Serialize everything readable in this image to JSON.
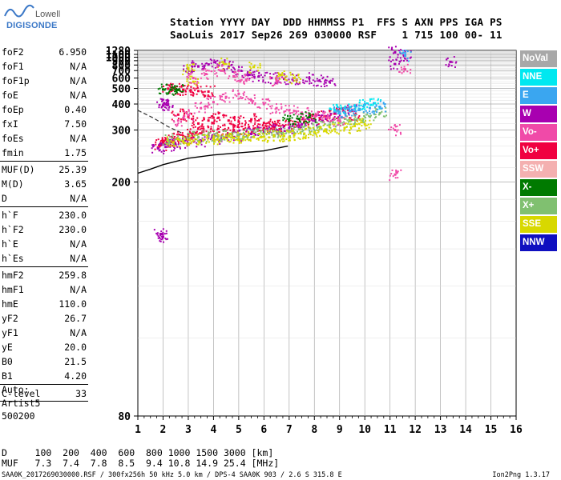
{
  "brand": {
    "line1": "Lowell",
    "line2": "DIGISONDE"
  },
  "header": {
    "line1": "Station YYYY DAY  DDD HHMMSS P1  FFS S AXN PPS IGA PS",
    "line2": "SaoLuis 2017 Sep26 269 030000 RSF    1 715 100 00- 11"
  },
  "params": [
    {
      "k": "foF2",
      "v": "6.950"
    },
    {
      "k": "foF1",
      "v": "N/A"
    },
    {
      "k": "foF1p",
      "v": "N/A"
    },
    {
      "k": "foE",
      "v": "N/A"
    },
    {
      "k": "foEp",
      "v": "0.40"
    },
    {
      "k": "fxI",
      "v": "7.50"
    },
    {
      "k": "foEs",
      "v": "N/A"
    },
    {
      "k": "fmin",
      "v": "1.75"
    },
    {
      "k": "MUF(D)",
      "v": "25.39",
      "sep": true
    },
    {
      "k": "M(D)",
      "v": "3.65"
    },
    {
      "k": "D",
      "v": "N/A"
    },
    {
      "k": "h`F",
      "v": "230.0",
      "sep": true
    },
    {
      "k": "h`F2",
      "v": "230.0"
    },
    {
      "k": "h`E",
      "v": "N/A"
    },
    {
      "k": "h`Es",
      "v": "N/A"
    },
    {
      "k": "hmF2",
      "v": "259.8",
      "sep": true
    },
    {
      "k": "hmF1",
      "v": "N/A"
    },
    {
      "k": "hmE",
      "v": "110.0"
    },
    {
      "k": "yF2",
      "v": "26.7"
    },
    {
      "k": "yF1",
      "v": "N/A"
    },
    {
      "k": "yE",
      "v": "20.0"
    },
    {
      "k": "B0",
      "v": "21.5"
    },
    {
      "k": "B1",
      "v": "4.20"
    }
  ],
  "clevel": {
    "k": "C-level",
    "v": "33"
  },
  "auto": {
    "line1": "Auto:",
    "line2": "Artist5",
    "line3": "500200"
  },
  "legend": [
    {
      "label": "NoVal",
      "color": "#a8a8a8",
      "text_color": "#ffffff"
    },
    {
      "label": "NNE",
      "color": "#00e8f0",
      "text_color": "#ffffff"
    },
    {
      "label": "E",
      "color": "#3aa6f0",
      "text_color": "#ffffff"
    },
    {
      "label": "W",
      "color": "#a800b0",
      "text_color": "#ffffff"
    },
    {
      "label": "Vo-",
      "color": "#f04aa8",
      "text_color": "#ffffff"
    },
    {
      "label": "Vo+",
      "color": "#f00040",
      "text_color": "#ffffff"
    },
    {
      "label": "SSW",
      "color": "#f4b0b0",
      "text_color": "#ffffff"
    },
    {
      "label": "X-",
      "color": "#007a00",
      "text_color": "#ffffff"
    },
    {
      "label": "X+",
      "color": "#80c070",
      "text_color": "#ffffff"
    },
    {
      "label": "SSE",
      "color": "#d8d800",
      "text_color": "#ffffff"
    },
    {
      "label": "NNW",
      "color": "#1010c0",
      "text_color": "#ffffff"
    }
  ],
  "footer": {
    "row_d": "D     100  200  400  600  800 1000 1500 3000 [km]",
    "row_muf": "MUF   7.3  7.4  7.8  8.5  9.4 10.8 14.9 25.4 [MHz]",
    "file_info": "SAA0K_2017269030000.RSF / 300fx256h 50 kHz 5.0 km / DPS-4 SAA0K 903 / 2.6 S 315.8 E",
    "version": "Ion2Png 1.3.17"
  },
  "chart_data": {
    "type": "scatter",
    "xlim": [
      1,
      16
    ],
    "ylim": [
      80,
      1280
    ],
    "x_ticks": [
      1,
      2,
      3,
      4,
      5,
      6,
      7,
      8,
      9,
      10,
      11,
      12,
      13,
      14,
      15,
      16
    ],
    "y_ticks": [
      80,
      200,
      300,
      400,
      500,
      600,
      700,
      800,
      900,
      1000,
      1100,
      1280
    ],
    "x_reciprocal_scale": true,
    "grid": true,
    "legend_position": "right",
    "series": [
      {
        "name": "Vo+",
        "color": "#f00040",
        "points": [
          [
            1.9,
            262
          ],
          [
            2.0,
            268
          ],
          [
            2.2,
            272
          ],
          [
            2.4,
            270
          ],
          [
            2.6,
            276
          ],
          [
            2.8,
            282
          ],
          [
            3.0,
            288
          ],
          [
            3.3,
            292
          ],
          [
            3.6,
            296
          ],
          [
            4.0,
            298
          ],
          [
            4.4,
            300
          ],
          [
            4.8,
            300
          ],
          [
            5.2,
            302
          ],
          [
            5.6,
            304
          ],
          [
            6.0,
            306
          ],
          [
            6.4,
            310
          ],
          [
            6.8,
            312
          ],
          [
            7.2,
            318
          ],
          [
            7.6,
            326
          ],
          [
            8.0,
            336
          ],
          [
            8.4,
            346
          ],
          [
            8.8,
            356
          ],
          [
            9.2,
            362
          ],
          [
            9.6,
            350
          ],
          [
            2.2,
            498
          ],
          [
            2.5,
            494
          ],
          [
            2.8,
            490
          ],
          [
            3.1,
            486
          ],
          [
            3.4,
            480
          ],
          [
            3.8,
            476
          ],
          [
            2.6,
            352
          ],
          [
            3.0,
            344
          ],
          [
            3.4,
            320
          ],
          [
            3.8,
            330
          ],
          [
            4.2,
            340
          ],
          [
            4.6,
            330
          ],
          [
            5.0,
            326
          ],
          [
            5.5,
            334
          ],
          [
            6.0,
            322
          ],
          [
            6.5,
            316
          ]
        ]
      },
      {
        "name": "W",
        "color": "#a800b0",
        "points": [
          [
            1.8,
            255
          ],
          [
            2.1,
            258
          ],
          [
            2.5,
            262
          ],
          [
            3.0,
            266
          ],
          [
            3.5,
            271
          ],
          [
            4.0,
            276
          ],
          [
            4.5,
            281
          ],
          [
            5.0,
            285
          ],
          [
            5.5,
            289
          ],
          [
            6.0,
            294
          ],
          [
            6.5,
            300
          ],
          [
            7.0,
            306
          ],
          [
            7.5,
            318
          ],
          [
            8.0,
            330
          ],
          [
            8.5,
            346
          ],
          [
            9.0,
            362
          ],
          [
            9.5,
            372
          ],
          [
            2.0,
            392
          ],
          [
            2.1,
            398
          ],
          [
            2.2,
            396
          ],
          [
            3.0,
            740
          ],
          [
            3.4,
            770
          ],
          [
            3.8,
            810
          ],
          [
            4.2,
            790
          ],
          [
            4.6,
            760
          ],
          [
            5.0,
            700
          ],
          [
            5.4,
            640
          ],
          [
            5.8,
            620
          ],
          [
            6.3,
            600
          ],
          [
            6.8,
            590
          ],
          [
            7.3,
            580
          ],
          [
            7.8,
            600
          ],
          [
            8.2,
            570
          ],
          [
            8.6,
            560
          ],
          [
            2.0,
            148
          ],
          [
            1.9,
            150
          ],
          [
            11.2,
            1190
          ],
          [
            11.6,
            1060
          ],
          [
            13.4,
            870
          ],
          [
            11.2,
            820
          ]
        ]
      },
      {
        "name": "X+",
        "color": "#80c070",
        "points": [
          [
            2.2,
            274
          ],
          [
            2.6,
            276
          ],
          [
            3.0,
            278
          ],
          [
            3.4,
            280
          ],
          [
            3.8,
            282
          ],
          [
            4.2,
            284
          ],
          [
            4.6,
            285
          ],
          [
            5.0,
            286
          ],
          [
            5.4,
            288
          ],
          [
            5.8,
            289
          ],
          [
            6.2,
            291
          ],
          [
            6.6,
            294
          ],
          [
            7.0,
            298
          ],
          [
            7.4,
            302
          ],
          [
            7.8,
            306
          ],
          [
            8.2,
            310
          ],
          [
            8.6,
            316
          ],
          [
            9.0,
            322
          ],
          [
            9.4,
            328
          ],
          [
            9.8,
            334
          ],
          [
            10.2,
            344
          ],
          [
            10.6,
            358
          ]
        ]
      },
      {
        "name": "SSE",
        "color": "#d8d800",
        "points": [
          [
            2.4,
            268
          ],
          [
            2.8,
            270
          ],
          [
            3.2,
            272
          ],
          [
            3.6,
            274
          ],
          [
            4.0,
            276
          ],
          [
            4.4,
            278
          ],
          [
            4.8,
            279
          ],
          [
            5.2,
            280
          ],
          [
            5.6,
            281
          ],
          [
            6.0,
            282
          ],
          [
            6.4,
            283
          ],
          [
            6.8,
            284
          ],
          [
            7.2,
            286
          ],
          [
            7.6,
            290
          ],
          [
            8.0,
            294
          ],
          [
            8.4,
            298
          ],
          [
            8.8,
            302
          ],
          [
            9.2,
            306
          ],
          [
            9.6,
            312
          ],
          [
            10.0,
            318
          ],
          [
            3.0,
            720
          ],
          [
            4.4,
            820
          ],
          [
            5.6,
            760
          ],
          [
            6.7,
            640
          ],
          [
            7.2,
            600
          ],
          [
            3.2,
            560
          ]
        ]
      },
      {
        "name": "Vo-",
        "color": "#f04aa8",
        "points": [
          [
            2.6,
            330
          ],
          [
            3.0,
            350
          ],
          [
            3.5,
            380
          ],
          [
            4.0,
            410
          ],
          [
            4.5,
            440
          ],
          [
            5.0,
            460
          ],
          [
            5.5,
            420
          ],
          [
            6.0,
            400
          ],
          [
            6.5,
            380
          ],
          [
            7.0,
            370
          ],
          [
            7.5,
            360
          ],
          [
            8.0,
            350
          ],
          [
            8.5,
            340
          ],
          [
            9.0,
            330
          ],
          [
            3.2,
            600
          ],
          [
            3.7,
            650
          ],
          [
            4.3,
            700
          ],
          [
            4.8,
            620
          ],
          [
            5.3,
            580
          ],
          [
            6.5,
            560
          ],
          [
            11.6,
            720
          ],
          [
            11.2,
            300
          ],
          [
            11.2,
            210
          ]
        ]
      },
      {
        "name": "NNE",
        "color": "#00e8f0",
        "points": [
          [
            8.8,
            372
          ],
          [
            9.2,
            380
          ],
          [
            9.6,
            390
          ],
          [
            10.0,
            396
          ],
          [
            10.4,
            404
          ]
        ]
      },
      {
        "name": "E",
        "color": "#3aa6f0",
        "points": [
          [
            9.0,
            360
          ],
          [
            9.4,
            368
          ],
          [
            9.8,
            376
          ],
          [
            10.2,
            380
          ],
          [
            10.6,
            386
          ],
          [
            11.6,
            1055
          ]
        ]
      },
      {
        "name": "X-",
        "color": "#007a00",
        "points": [
          [
            2.0,
            492
          ],
          [
            2.3,
            490
          ],
          [
            2.6,
            488
          ],
          [
            7.0,
            330
          ],
          [
            7.4,
            336
          ],
          [
            7.8,
            342
          ]
        ]
      }
    ]
  }
}
